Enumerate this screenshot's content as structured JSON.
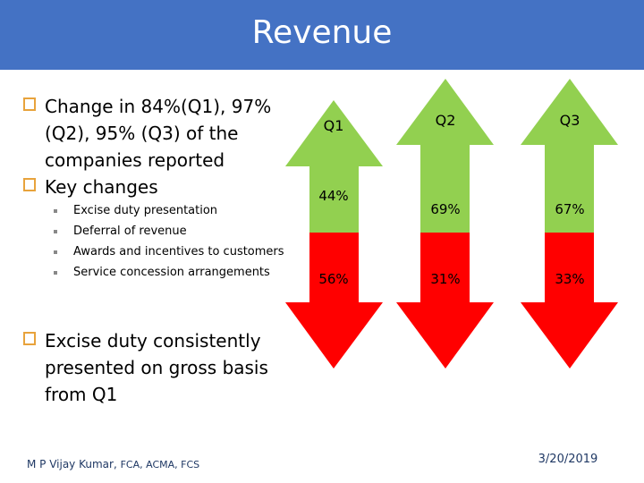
{
  "title": "Revenue",
  "bullets": [
    {
      "text": "Change in 84%(Q1), 97% (Q2), 95% (Q3) of the companies reported"
    },
    {
      "text": "Key changes"
    }
  ],
  "sub_bullets": [
    "Excise duty presentation",
    "Deferral of revenue",
    "Awards and incentives to customers",
    "Service concession arrangements"
  ],
  "bullet_last": "Excise duty consistently presented on gross basis from Q1",
  "quarters": [
    {
      "label": "Q1",
      "up_pct": "44%",
      "down_pct": "56%",
      "up_value": 44,
      "down_value": 56
    },
    {
      "label": "Q2",
      "up_pct": "69%",
      "down_pct": "31%",
      "up_value": 69,
      "down_value": 31
    },
    {
      "label": "Q3",
      "up_pct": "67%",
      "down_pct": "33%",
      "up_value": 67,
      "down_value": 33
    }
  ],
  "colors": {
    "title_bar": "#4472c4",
    "up_arrow": "#92d050",
    "down_arrow": "#ff0000",
    "checkbox": "#e8a33c",
    "footer": "#1f3864"
  },
  "footer": {
    "author": "M P Vijay Kumar,",
    "credentials": "FCA, ACMA, FCS",
    "date": "3/20/2019"
  }
}
